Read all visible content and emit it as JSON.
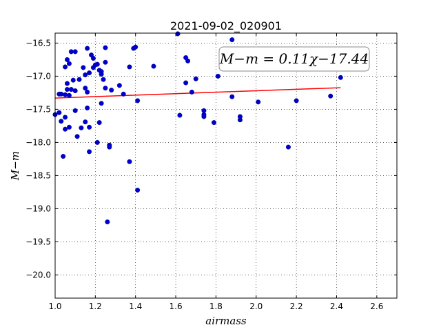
{
  "chart_data": {
    "type": "scatter",
    "title": "2021-09-02_020901",
    "xlabel": "airmass",
    "ylabel": "M−m",
    "xlim": [
      1.0,
      2.7
    ],
    "ylim": [
      -20.35,
      -16.35
    ],
    "y_inverted": true,
    "xticks": [
      "1.0",
      "1.2",
      "1.4",
      "1.6",
      "1.8",
      "2.0",
      "2.2",
      "2.4",
      "2.6"
    ],
    "xtick_values": [
      1.0,
      1.2,
      1.4,
      1.6,
      1.8,
      2.0,
      2.2,
      2.4,
      2.6
    ],
    "yticks": [
      "−16.5",
      "−17.0",
      "−17.5",
      "−18.0",
      "−18.5",
      "−19.0",
      "−19.5",
      "−20.0"
    ],
    "ytick_values": [
      -16.5,
      -17.0,
      -17.5,
      -18.0,
      -18.5,
      -19.0,
      -19.5,
      -20.0
    ],
    "grid": true,
    "annotation": "M−m = 0.11χ−17.44",
    "fit_line": {
      "slope": 0.11,
      "intercept": -17.44,
      "x_range": [
        1.0,
        2.42
      ],
      "color": "#ff0000"
    },
    "point_color": "#0000cc",
    "series": [
      {
        "points": [
          [
            1.0,
            -17.58
          ],
          [
            1.02,
            -17.55
          ],
          [
            1.02,
            -17.27
          ],
          [
            1.03,
            -17.68
          ],
          [
            1.03,
            -17.27
          ],
          [
            1.04,
            -18.21
          ],
          [
            1.05,
            -17.28
          ],
          [
            1.05,
            -16.86
          ],
          [
            1.05,
            -17.8
          ],
          [
            1.05,
            -17.62
          ],
          [
            1.06,
            -17.11
          ],
          [
            1.06,
            -17.2
          ],
          [
            1.06,
            -16.75
          ],
          [
            1.07,
            -17.77
          ],
          [
            1.07,
            -17.29
          ],
          [
            1.07,
            -16.81
          ],
          [
            1.08,
            -16.63
          ],
          [
            1.08,
            -17.2
          ],
          [
            1.09,
            -17.06
          ],
          [
            1.1,
            -16.63
          ],
          [
            1.1,
            -17.22
          ],
          [
            1.1,
            -17.52
          ],
          [
            1.11,
            -17.91
          ],
          [
            1.12,
            -17.05
          ],
          [
            1.13,
            -17.78
          ],
          [
            1.14,
            -16.87
          ],
          [
            1.15,
            -17.18
          ],
          [
            1.15,
            -17.69
          ],
          [
            1.15,
            -16.98
          ],
          [
            1.16,
            -16.58
          ],
          [
            1.16,
            -17.48
          ],
          [
            1.16,
            -17.24
          ],
          [
            1.17,
            -16.95
          ],
          [
            1.17,
            -17.77
          ],
          [
            1.17,
            -18.14
          ],
          [
            1.18,
            -16.68
          ],
          [
            1.19,
            -16.73
          ],
          [
            1.19,
            -16.87
          ],
          [
            1.2,
            -16.83
          ],
          [
            1.21,
            -18.0
          ],
          [
            1.21,
            -16.82
          ],
          [
            1.22,
            -17.7
          ],
          [
            1.22,
            -16.91
          ],
          [
            1.23,
            -16.93
          ],
          [
            1.23,
            -16.97
          ],
          [
            1.23,
            -17.41
          ],
          [
            1.24,
            -17.05
          ],
          [
            1.25,
            -16.57
          ],
          [
            1.25,
            -16.79
          ],
          [
            1.25,
            -17.18
          ],
          [
            1.26,
            -19.2
          ],
          [
            1.27,
            -18.04
          ],
          [
            1.27,
            -18.07
          ],
          [
            1.28,
            -17.21
          ],
          [
            1.32,
            -17.14
          ],
          [
            1.34,
            -17.27
          ],
          [
            1.37,
            -16.86
          ],
          [
            1.37,
            -18.29
          ],
          [
            1.39,
            -16.58
          ],
          [
            1.4,
            -16.56
          ],
          [
            1.41,
            -18.72
          ],
          [
            1.41,
            -17.37
          ],
          [
            1.49,
            -16.85
          ],
          [
            1.61,
            -16.36
          ],
          [
            1.62,
            -17.59
          ],
          [
            1.65,
            -16.72
          ],
          [
            1.65,
            -17.1
          ],
          [
            1.66,
            -16.77
          ],
          [
            1.68,
            -17.24
          ],
          [
            1.7,
            -17.04
          ],
          [
            1.74,
            -17.52
          ],
          [
            1.74,
            -17.58
          ],
          [
            1.74,
            -17.61
          ],
          [
            1.79,
            -17.7
          ],
          [
            1.81,
            -17.0
          ],
          [
            1.88,
            -16.45
          ],
          [
            1.88,
            -17.31
          ],
          [
            1.92,
            -17.66
          ],
          [
            1.92,
            -17.61
          ],
          [
            2.01,
            -17.39
          ],
          [
            2.16,
            -18.07
          ],
          [
            2.2,
            -17.37
          ],
          [
            2.37,
            -17.3
          ],
          [
            2.42,
            -17.02
          ]
        ]
      }
    ]
  }
}
